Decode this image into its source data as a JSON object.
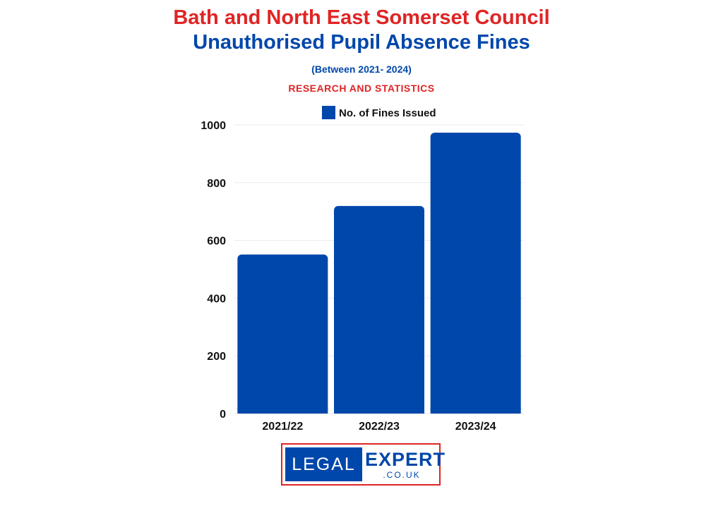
{
  "header": {
    "title_line1": "Bath and North East Somerset Council",
    "title_line2": "Unauthorised Pupil Absence Fines",
    "subtitle": "(Between 2021- 2024)",
    "tagline": "RESEARCH AND STATISTICS"
  },
  "colors": {
    "bar": "#0047ab",
    "title_red": "#e02424",
    "title_blue": "#0047ab"
  },
  "chart_data": {
    "type": "bar",
    "categories": [
      "2021/22",
      "2022/23",
      "2023/24"
    ],
    "series": [
      {
        "name": "No. of Fines Issued",
        "values": [
          551,
          719,
          973
        ]
      }
    ],
    "y_ticks": [
      "0",
      "200",
      "400",
      "600",
      "800",
      "1000"
    ],
    "ylim": [
      0,
      1000
    ],
    "xlabel": "",
    "ylabel": "",
    "grid": true,
    "legend": "top-center"
  },
  "logo": {
    "left_text": "LEGAL",
    "right_text": "EXPERT",
    "domain_text": ".CO.UK"
  }
}
